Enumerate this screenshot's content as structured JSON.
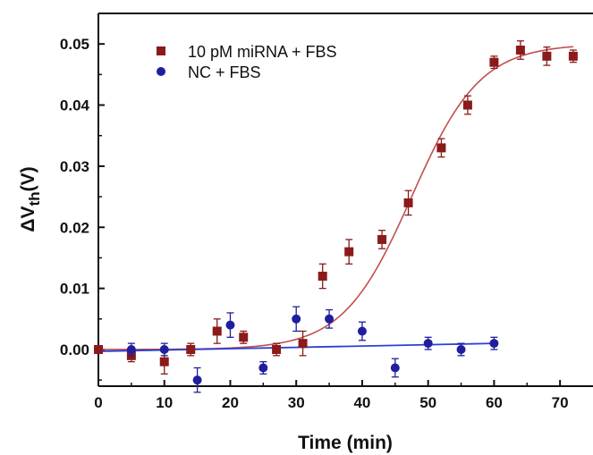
{
  "chart_data": {
    "type": "scatter",
    "xlabel": "Time (min)",
    "ylabel": {
      "delta": "ΔV",
      "sub": "th",
      "unit": "(V)"
    },
    "xlim": [
      0,
      75
    ],
    "ylim": [
      -0.006,
      0.055
    ],
    "x_ticks": [
      "0",
      "10",
      "20",
      "30",
      "40",
      "50",
      "60",
      "70"
    ],
    "y_ticks": [
      "0.00",
      "0.01",
      "0.02",
      "0.03",
      "0.04",
      "0.05"
    ],
    "grid": false,
    "legend_position": "top-left",
    "series": [
      {
        "name": "10 pM miRNA + FBS",
        "marker": "square",
        "color": "#8b1a1a",
        "fit_color": "#c0504d",
        "fit": {
          "A1": 0.0,
          "A2": 0.05,
          "x0": 47.5,
          "dx": 5.2,
          "x_range": [
            0,
            72
          ]
        },
        "points": [
          {
            "x": 0,
            "y": 0.0,
            "err": 0.0005
          },
          {
            "x": 5,
            "y": -0.001,
            "err": 0.001
          },
          {
            "x": 10,
            "y": -0.002,
            "err": 0.002
          },
          {
            "x": 14,
            "y": 0.0,
            "err": 0.001
          },
          {
            "x": 18,
            "y": 0.003,
            "err": 0.002
          },
          {
            "x": 22,
            "y": 0.002,
            "err": 0.001
          },
          {
            "x": 27,
            "y": 0.0,
            "err": 0.001
          },
          {
            "x": 31,
            "y": 0.001,
            "err": 0.002
          },
          {
            "x": 34,
            "y": 0.012,
            "err": 0.002
          },
          {
            "x": 38,
            "y": 0.016,
            "err": 0.002
          },
          {
            "x": 43,
            "y": 0.018,
            "err": 0.0015
          },
          {
            "x": 47,
            "y": 0.024,
            "err": 0.002
          },
          {
            "x": 52,
            "y": 0.033,
            "err": 0.0015
          },
          {
            "x": 56,
            "y": 0.04,
            "err": 0.0015
          },
          {
            "x": 60,
            "y": 0.047,
            "err": 0.001
          },
          {
            "x": 64,
            "y": 0.049,
            "err": 0.0015
          },
          {
            "x": 68,
            "y": 0.048,
            "err": 0.0015
          },
          {
            "x": 72,
            "y": 0.048,
            "err": 0.001
          }
        ]
      },
      {
        "name": "NC + FBS",
        "marker": "circle",
        "color": "#1f1f9e",
        "fit_color": "#2b3fd6",
        "fit": {
          "x_range": [
            0,
            60
          ],
          "y_range": [
            -0.0003,
            0.001
          ]
        },
        "points": [
          {
            "x": 5,
            "y": 0.0,
            "err": 0.001
          },
          {
            "x": 10,
            "y": 0.0,
            "err": 0.001
          },
          {
            "x": 15,
            "y": -0.005,
            "err": 0.002
          },
          {
            "x": 20,
            "y": 0.004,
            "err": 0.002
          },
          {
            "x": 25,
            "y": -0.003,
            "err": 0.001
          },
          {
            "x": 30,
            "y": 0.005,
            "err": 0.002
          },
          {
            "x": 35,
            "y": 0.005,
            "err": 0.0015
          },
          {
            "x": 40,
            "y": 0.003,
            "err": 0.0015
          },
          {
            "x": 45,
            "y": -0.003,
            "err": 0.0015
          },
          {
            "x": 50,
            "y": 0.001,
            "err": 0.001
          },
          {
            "x": 55,
            "y": 0.0,
            "err": 0.001
          },
          {
            "x": 60,
            "y": 0.001,
            "err": 0.001
          }
        ]
      }
    ]
  }
}
